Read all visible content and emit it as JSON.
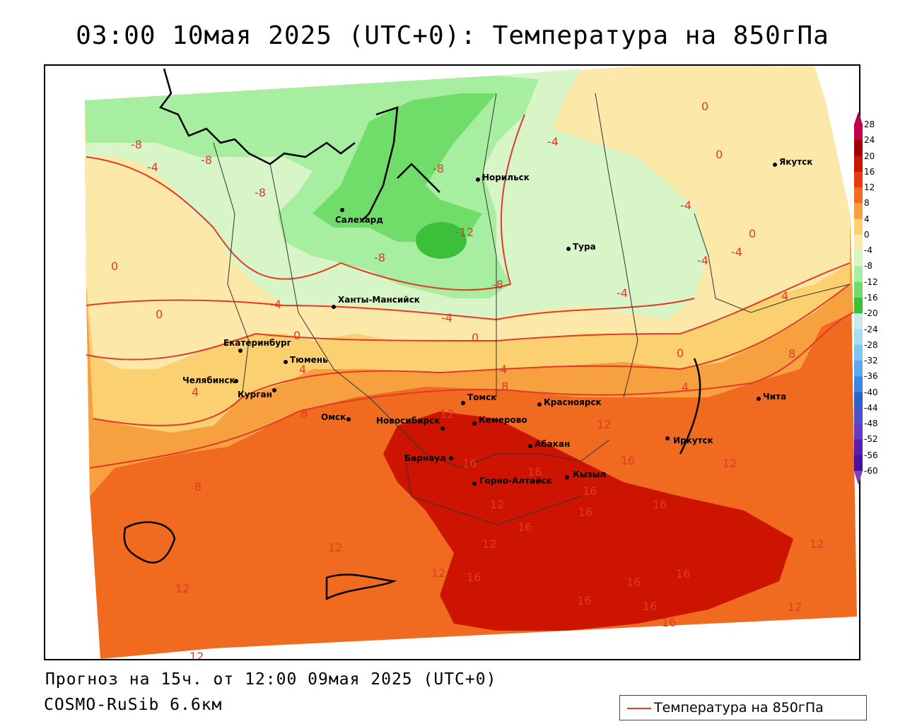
{
  "title": "03:00 10мая 2025 (UTC+0): Температура на 850гПа",
  "forecast_line": "Прогноз на 15ч. от 12:00 09мая 2025 (UTC+0)",
  "model_line": "COSMO-RuSib 6.6км",
  "legend_label": "Температура на 850гПа",
  "colorbar": {
    "labels": [
      "28",
      "24",
      "20",
      "16",
      "12",
      "8",
      "4",
      "0",
      "-4",
      "-8",
      "-12",
      "-16",
      "-20",
      "-24",
      "-28",
      "-32",
      "-36",
      "-40",
      "-44",
      "-48",
      "-52",
      "-56",
      "-60"
    ],
    "colors": [
      "#c0004a",
      "#a00000",
      "#cc1400",
      "#e83a10",
      "#f06a20",
      "#f7a040",
      "#fbd070",
      "#fce8a8",
      "#d8f5c8",
      "#a8eea0",
      "#70dc6a",
      "#3cc03a",
      "#c8ecec",
      "#a8dcf0",
      "#80c4f0",
      "#5aa8f0",
      "#3a86e6",
      "#3060d0",
      "#5050c8",
      "#6040c0",
      "#5a1eb0",
      "#4a10a0"
    ]
  },
  "cities": [
    {
      "name": "Якутск"
    },
    {
      "name": "Норильск"
    },
    {
      "name": "Салехард"
    },
    {
      "name": "Тура"
    },
    {
      "name": "Ханты-Мансийск"
    },
    {
      "name": "Екатеринбург"
    },
    {
      "name": "Тюмень"
    },
    {
      "name": "Челябинск"
    },
    {
      "name": "Курган"
    },
    {
      "name": "Омск"
    },
    {
      "name": "Новосибирск"
    },
    {
      "name": "Томск"
    },
    {
      "name": "Кемерово"
    },
    {
      "name": "Красноярск"
    },
    {
      "name": "Абакан"
    },
    {
      "name": "Барнаул"
    },
    {
      "name": "Горно-Алтайск"
    },
    {
      "name": "Кызыл"
    },
    {
      "name": "Иркутск"
    },
    {
      "name": "Чита"
    }
  ],
  "isotherm_labels": [
    "-8",
    "-4",
    "-8",
    "-8",
    "-8",
    "-12",
    "-8",
    "-8",
    "-4",
    "-4",
    "-4",
    "-4",
    "0",
    "0",
    "0",
    "-4",
    "0",
    "-4",
    "-4",
    "0",
    "0",
    "0",
    "0",
    "4",
    "4",
    "4",
    "4",
    "8",
    "8",
    "4",
    "8",
    "8",
    "12",
    "12",
    "12",
    "16",
    "16",
    "16",
    "12",
    "16",
    "12",
    "16",
    "16",
    "12",
    "12",
    "12",
    "12",
    "16",
    "16",
    "16",
    "16",
    "16",
    "12",
    "16",
    "16",
    "12"
  ]
}
